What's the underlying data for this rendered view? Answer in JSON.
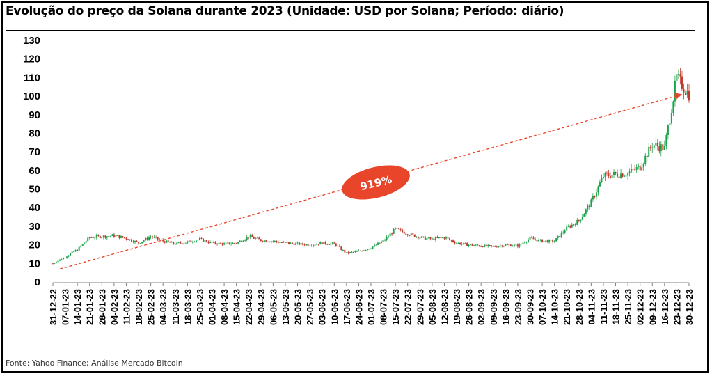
{
  "title": "Evolução do preço da Solana durante 2023 (Unidade: USD por Solana; Período: diário)",
  "source": "Fonte: Yahoo Finance; Análise Mercado Bitcoin",
  "annotation": {
    "label": "919%",
    "color": "#e8452a"
  },
  "colors": {
    "up": "#1aa34a",
    "down": "#c0392b",
    "arrow": "#e8452a"
  },
  "chart_data": {
    "type": "candlestick",
    "title": "Evolução do preço da Solana durante 2023 (Unidade: USD por Solana; Período: diário)",
    "ylim": [
      0,
      130
    ],
    "yticks": [
      0,
      10,
      20,
      30,
      40,
      50,
      60,
      70,
      80,
      90,
      100,
      110,
      120,
      130
    ],
    "grid": false,
    "start_date": "31-12-22",
    "end_date": "30-12-23",
    "xticks": [
      "31-12-22",
      "07-01-23",
      "14-01-23",
      "21-01-23",
      "28-01-23",
      "04-02-23",
      "11-02-23",
      "18-02-23",
      "25-02-23",
      "04-03-23",
      "11-03-23",
      "18-03-23",
      "25-03-23",
      "01-04-23",
      "08-04-23",
      "15-04-23",
      "22-04-23",
      "29-04-23",
      "06-05-23",
      "13-05-23",
      "20-05-23",
      "27-05-23",
      "03-06-23",
      "10-06-23",
      "17-06-23",
      "24-06-23",
      "01-07-23",
      "08-07-23",
      "15-07-23",
      "22-07-23",
      "29-07-23",
      "05-08-23",
      "12-08-23",
      "19-08-23",
      "26-08-23",
      "02-09-23",
      "09-09-23",
      "16-09-23",
      "23-09-23",
      "30-09-23",
      "07-10-23",
      "14-10-23",
      "21-10-23",
      "28-10-23",
      "04-11-23",
      "11-11-23",
      "18-11-23",
      "25-11-23",
      "02-12-23",
      "09-12-23",
      "16-12-23",
      "23-12-23",
      "30-12-23"
    ],
    "weekly_close": [
      10.0,
      13.5,
      17.5,
      24.0,
      24.5,
      25.0,
      23.5,
      21.0,
      24.5,
      22.0,
      20.5,
      21.5,
      23.0,
      21.0,
      20.5,
      21.0,
      24.5,
      22.5,
      22.0,
      21.0,
      20.5,
      20.0,
      21.0,
      20.5,
      15.5,
      16.5,
      18.5,
      22.0,
      28.5,
      26.0,
      24.0,
      23.0,
      24.0,
      21.0,
      20.0,
      19.5,
      19.0,
      20.0,
      19.5,
      23.5,
      22.0,
      22.0,
      29.0,
      33.0,
      43.0,
      57.0,
      58.0,
      58.5,
      62.0,
      74.0,
      72.0,
      110.0,
      101.0
    ],
    "trend": {
      "from_x": "31-12-22",
      "from_y": 7,
      "to_x": "30-12-23",
      "to_y": 101,
      "label": "919%"
    }
  }
}
